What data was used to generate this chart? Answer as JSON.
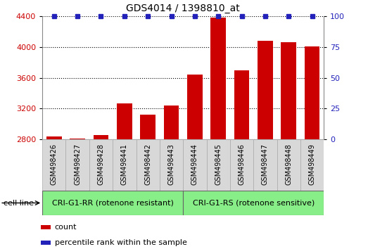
{
  "title": "GDS4014 / 1398810_at",
  "samples": [
    "GSM498426",
    "GSM498427",
    "GSM498428",
    "GSM498441",
    "GSM498442",
    "GSM498443",
    "GSM498444",
    "GSM498445",
    "GSM498446",
    "GSM498447",
    "GSM498448",
    "GSM498449"
  ],
  "counts": [
    2840,
    2812,
    2857,
    3265,
    3120,
    3245,
    3640,
    4380,
    3700,
    4085,
    4060,
    4005
  ],
  "percentile_ranks": [
    100,
    100,
    100,
    100,
    100,
    100,
    100,
    100,
    100,
    100,
    100,
    100
  ],
  "group1_label": "CRI-G1-RR (rotenone resistant)",
  "group2_label": "CRI-G1-RS (rotenone sensitive)",
  "group1_count": 6,
  "group2_count": 6,
  "ylim_left": [
    2800,
    4400
  ],
  "ylim_right": [
    0,
    100
  ],
  "yticks_left": [
    2800,
    3200,
    3600,
    4000,
    4400
  ],
  "yticks_right": [
    0,
    25,
    50,
    75,
    100
  ],
  "bar_color": "#cc0000",
  "dot_color": "#2222bb",
  "group_bg_color": "#88ee88",
  "ylabel_right_color": "#2222bb",
  "ylabel_left_color": "#cc0000",
  "legend_count_label": "count",
  "legend_pct_label": "percentile rank within the sample",
  "cell_line_label": "cell line",
  "bg_color": "#ffffff"
}
